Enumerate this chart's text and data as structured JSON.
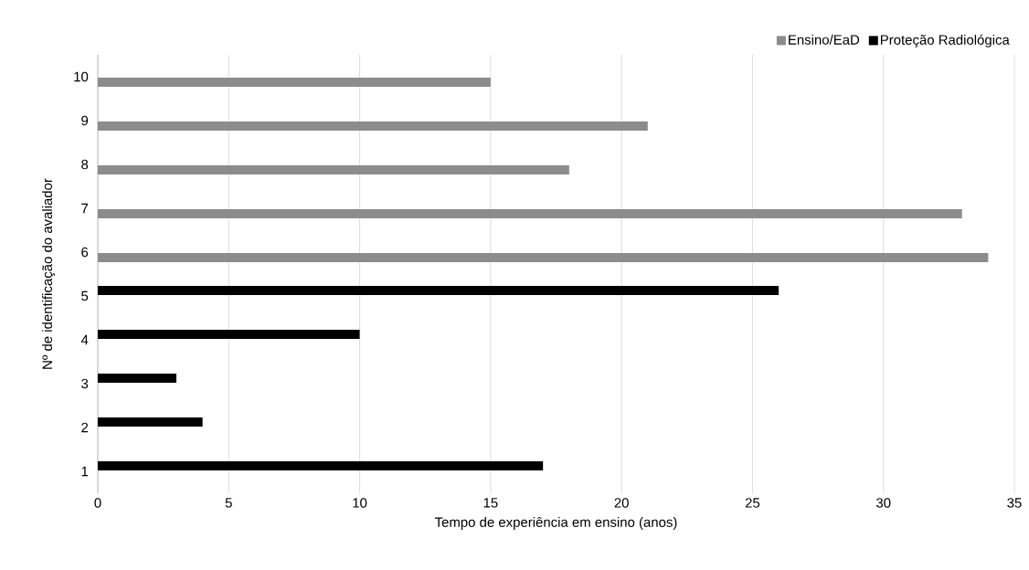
{
  "chart_data": {
    "type": "bar",
    "orientation": "horizontal",
    "xlabel": "Tempo de experiência em ensino (anos)",
    "ylabel": "Nº de identificação do avaliador",
    "categories": [
      "10",
      "9",
      "8",
      "7",
      "6",
      "5",
      "4",
      "3",
      "2",
      "1"
    ],
    "series": [
      {
        "name": "Ensino/EaD",
        "color": "#8c8c8c",
        "values": [
          15,
          21,
          18,
          33,
          34,
          null,
          null,
          null,
          null,
          null
        ]
      },
      {
        "name": "Proteção Radiológica",
        "color": "#000000",
        "values": [
          null,
          null,
          null,
          null,
          null,
          26,
          10,
          3,
          4,
          17
        ]
      }
    ],
    "xlim": [
      0,
      35
    ],
    "xticks": [
      0,
      5,
      10,
      15,
      20,
      25,
      30,
      35
    ],
    "grid": "x",
    "legend": "top right"
  }
}
